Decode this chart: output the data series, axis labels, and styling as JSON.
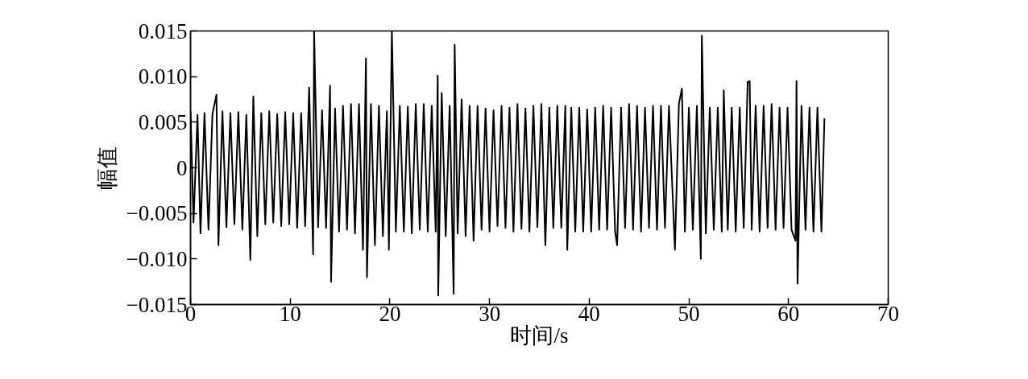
{
  "chart_data": {
    "type": "line",
    "xlabel": "时间/s",
    "ylabel": "幅值",
    "xlim": [
      0,
      70
    ],
    "xticks": [
      0,
      10,
      20,
      30,
      40,
      50,
      60,
      70
    ],
    "ylim": [
      -0.015,
      0.015
    ],
    "yticks": [
      {
        "value": -0.015,
        "label": "−0.015"
      },
      {
        "value": -0.01,
        "label": "−0.010"
      },
      {
        "value": -0.005,
        "label": "−0.005"
      },
      0,
      {
        "value": 0.005,
        "label": "0.005"
      },
      {
        "value": 0.01,
        "label": "0.010"
      },
      {
        "value": 0.015,
        "label": "0.015"
      }
    ],
    "grid": false,
    "marker": "none",
    "line_style": "solid",
    "x": [
      0.0,
      0.3,
      0.7,
      1.0,
      1.4,
      1.8,
      2.2,
      2.6,
      2.8,
      3.2,
      3.6,
      4.0,
      4.4,
      4.8,
      5.2,
      5.6,
      6.0,
      6.3,
      6.7,
      7.1,
      7.5,
      7.9,
      8.3,
      8.7,
      9.1,
      9.5,
      9.9,
      10.3,
      10.7,
      11.1,
      11.5,
      11.9,
      12.3,
      12.4,
      12.8,
      13.2,
      13.6,
      14.0,
      14.1,
      14.5,
      14.9,
      15.3,
      15.7,
      16.1,
      16.5,
      16.9,
      17.3,
      17.6,
      17.7,
      18.1,
      18.5,
      18.9,
      19.3,
      19.7,
      19.9,
      20.2,
      20.6,
      21.0,
      21.4,
      21.8,
      22.2,
      22.6,
      23.0,
      23.4,
      23.8,
      24.2,
      24.6,
      24.8,
      24.85,
      25.2,
      25.6,
      26.0,
      26.4,
      26.5,
      26.8,
      27.2,
      27.6,
      28.0,
      28.4,
      28.8,
      29.2,
      29.6,
      30.0,
      30.4,
      30.8,
      31.2,
      31.6,
      32.0,
      32.4,
      32.8,
      33.2,
      33.6,
      34.0,
      34.4,
      34.8,
      35.2,
      35.6,
      36.0,
      36.4,
      36.8,
      37.2,
      37.6,
      37.8,
      38.2,
      38.6,
      39.0,
      39.4,
      39.8,
      40.2,
      40.6,
      41.0,
      41.4,
      41.8,
      42.2,
      42.6,
      42.8,
      43.2,
      43.6,
      44.0,
      44.4,
      44.8,
      45.2,
      45.6,
      46.0,
      46.4,
      46.8,
      47.2,
      47.6,
      48.0,
      48.6,
      49.0,
      49.3,
      49.6,
      50.0,
      50.4,
      50.8,
      51.2,
      51.3,
      51.7,
      52.1,
      52.5,
      52.9,
      53.3,
      53.5,
      53.9,
      54.3,
      54.7,
      55.1,
      55.5,
      55.9,
      56.1,
      56.3,
      56.7,
      57.1,
      57.5,
      57.9,
      58.3,
      58.7,
      59.1,
      59.5,
      59.9,
      60.3,
      60.7,
      60.8,
      60.9,
      61.3,
      61.7,
      62.1,
      62.5,
      62.9,
      63.3,
      63.6
    ],
    "series": [
      {
        "color": "#000000",
        "values": [
          0.0062,
          -0.006,
          0.0058,
          -0.0072,
          0.006,
          -0.0068,
          0.0059,
          0.008,
          -0.0085,
          0.0062,
          -0.0065,
          0.006,
          -0.0062,
          0.0061,
          -0.0068,
          0.0058,
          -0.0101,
          0.0078,
          -0.0075,
          0.006,
          -0.0062,
          0.0062,
          -0.006,
          0.0059,
          -0.0064,
          0.0061,
          -0.0062,
          0.006,
          -0.0066,
          0.006,
          -0.0064,
          0.0088,
          -0.0095,
          0.015,
          -0.0065,
          0.0063,
          -0.0066,
          0.009,
          -0.0125,
          0.0065,
          -0.007,
          0.0068,
          -0.0068,
          0.007,
          -0.0072,
          0.007,
          -0.009,
          0.012,
          -0.012,
          0.007,
          -0.0085,
          0.0068,
          -0.0075,
          0.0062,
          -0.009,
          0.015,
          -0.007,
          0.0068,
          -0.007,
          0.0067,
          -0.0072,
          0.007,
          -0.0068,
          0.007,
          -0.007,
          0.0068,
          -0.007,
          0.0101,
          -0.014,
          0.0082,
          -0.0075,
          0.0068,
          -0.0138,
          0.0135,
          -0.0072,
          0.0075,
          -0.0075,
          0.0068,
          -0.008,
          0.0068,
          -0.0068,
          0.0065,
          -0.007,
          0.0063,
          -0.0064,
          0.0068,
          -0.0066,
          0.0066,
          -0.007,
          0.007,
          -0.0067,
          0.0065,
          -0.007,
          0.0068,
          -0.0065,
          0.007,
          -0.0085,
          0.0066,
          -0.0066,
          0.0068,
          -0.0066,
          0.0068,
          -0.009,
          0.0066,
          -0.007,
          0.0066,
          -0.007,
          0.0064,
          -0.007,
          0.0066,
          -0.0068,
          0.0068,
          -0.0068,
          0.0066,
          -0.007,
          -0.0085,
          0.0066,
          -0.0066,
          0.007,
          -0.0068,
          0.0068,
          -0.007,
          0.0066,
          -0.0066,
          0.0068,
          -0.0068,
          0.0068,
          -0.0066,
          0.0068,
          -0.009,
          0.007,
          0.0087,
          -0.007,
          0.0066,
          -0.0068,
          0.0068,
          -0.01,
          0.0145,
          -0.0072,
          0.0066,
          -0.0068,
          0.0066,
          -0.007,
          0.0085,
          -0.0068,
          0.0066,
          -0.007,
          0.0066,
          -0.0066,
          0.0094,
          0.0095,
          -0.0068,
          0.0068,
          -0.007,
          0.0068,
          -0.0066,
          0.007,
          -0.0068,
          0.0066,
          -0.0066,
          0.0066,
          -0.0068,
          -0.008,
          0.0095,
          -0.0127,
          0.0068,
          -0.0068,
          0.0066,
          -0.007,
          0.0066,
          -0.007,
          0.0054
        ]
      }
    ]
  }
}
